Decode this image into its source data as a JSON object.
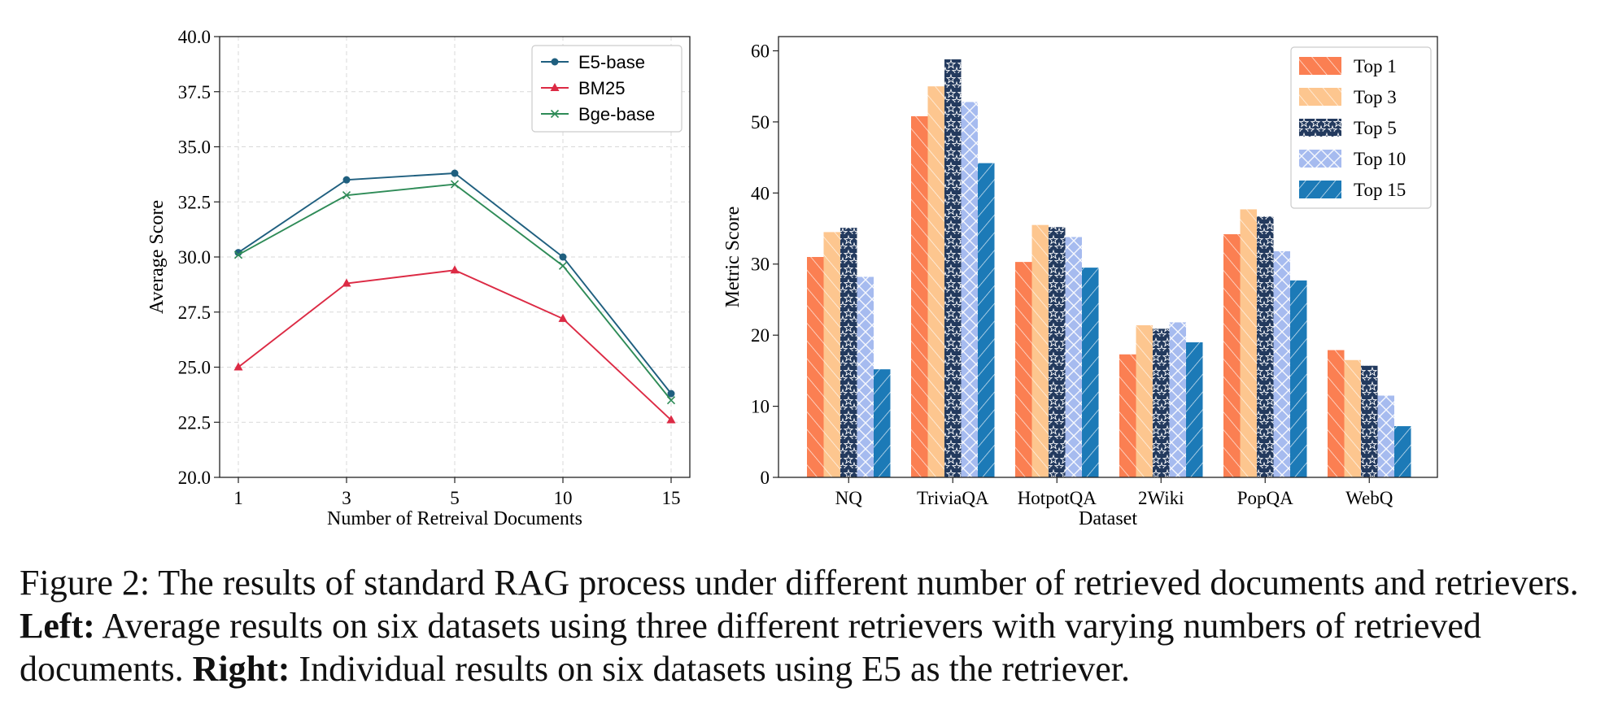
{
  "left_chart": {
    "xlabel": "Number of Retreival Documents",
    "ylabel": "Average Score",
    "legend_position": "top-right",
    "grid": true,
    "chart_data": {
      "type": "line",
      "x": [
        "1",
        "3",
        "5",
        "10",
        "15"
      ],
      "ylim": [
        20.0,
        40.0
      ],
      "yticks": [
        "20.0",
        "22.5",
        "25.0",
        "27.5",
        "30.0",
        "32.5",
        "35.0",
        "37.5",
        "40.0"
      ],
      "series": [
        {
          "name": "E5-base",
          "color": "#1f5f7f",
          "marker": "circle",
          "values": [
            30.2,
            33.5,
            33.8,
            30.0,
            23.8
          ]
        },
        {
          "name": "BM25",
          "color": "#dc2a44",
          "marker": "triangle",
          "values": [
            25.0,
            28.8,
            29.4,
            27.2,
            22.6
          ]
        },
        {
          "name": "Bge-base",
          "color": "#2e8b57",
          "marker": "x",
          "values": [
            30.1,
            32.8,
            33.3,
            29.6,
            23.5
          ]
        }
      ]
    }
  },
  "right_chart": {
    "xlabel": "Dataset",
    "ylabel": "Metric Score",
    "legend_position": "top-right",
    "chart_data": {
      "type": "bar",
      "categories": [
        "NQ",
        "TriviaQA",
        "HotpotQA",
        "2Wiki",
        "PopQA",
        "WebQ"
      ],
      "ylim": [
        0,
        62
      ],
      "yticks": [
        "0",
        "10",
        "20",
        "30",
        "40",
        "50",
        "60"
      ],
      "series": [
        {
          "name": "Top 1",
          "color": "#fb7f52",
          "hatch": "diag",
          "values": [
            31.0,
            50.8,
            30.3,
            17.3,
            34.2,
            17.9
          ]
        },
        {
          "name": "Top 3",
          "color": "#fdc68f",
          "hatch": "diag",
          "values": [
            34.5,
            55.0,
            35.5,
            21.4,
            37.7,
            16.5
          ]
        },
        {
          "name": "Top 5",
          "color": "#233a5e",
          "hatch": "star",
          "values": [
            35.1,
            58.8,
            35.2,
            20.9,
            36.7,
            15.7
          ]
        },
        {
          "name": "Top 10",
          "color": "#a6bbef",
          "hatch": "cross",
          "values": [
            28.2,
            52.8,
            33.8,
            21.8,
            31.8,
            11.5
          ]
        },
        {
          "name": "Top 15",
          "color": "#1c7ab7",
          "hatch": "backdiag",
          "values": [
            15.2,
            44.2,
            29.5,
            19.0,
            27.7,
            7.2
          ]
        }
      ]
    }
  },
  "caption": {
    "lead": "Figure 2: The results of standard RAG process under different number of retrieved documents and retrievers. ",
    "left_label": "Left:",
    "left_text": " Average results on six datasets using three different retrievers with varying numbers of retrieved documents. ",
    "right_label": "Right:",
    "right_text": " Individual results on six datasets using E5 as the retriever."
  }
}
